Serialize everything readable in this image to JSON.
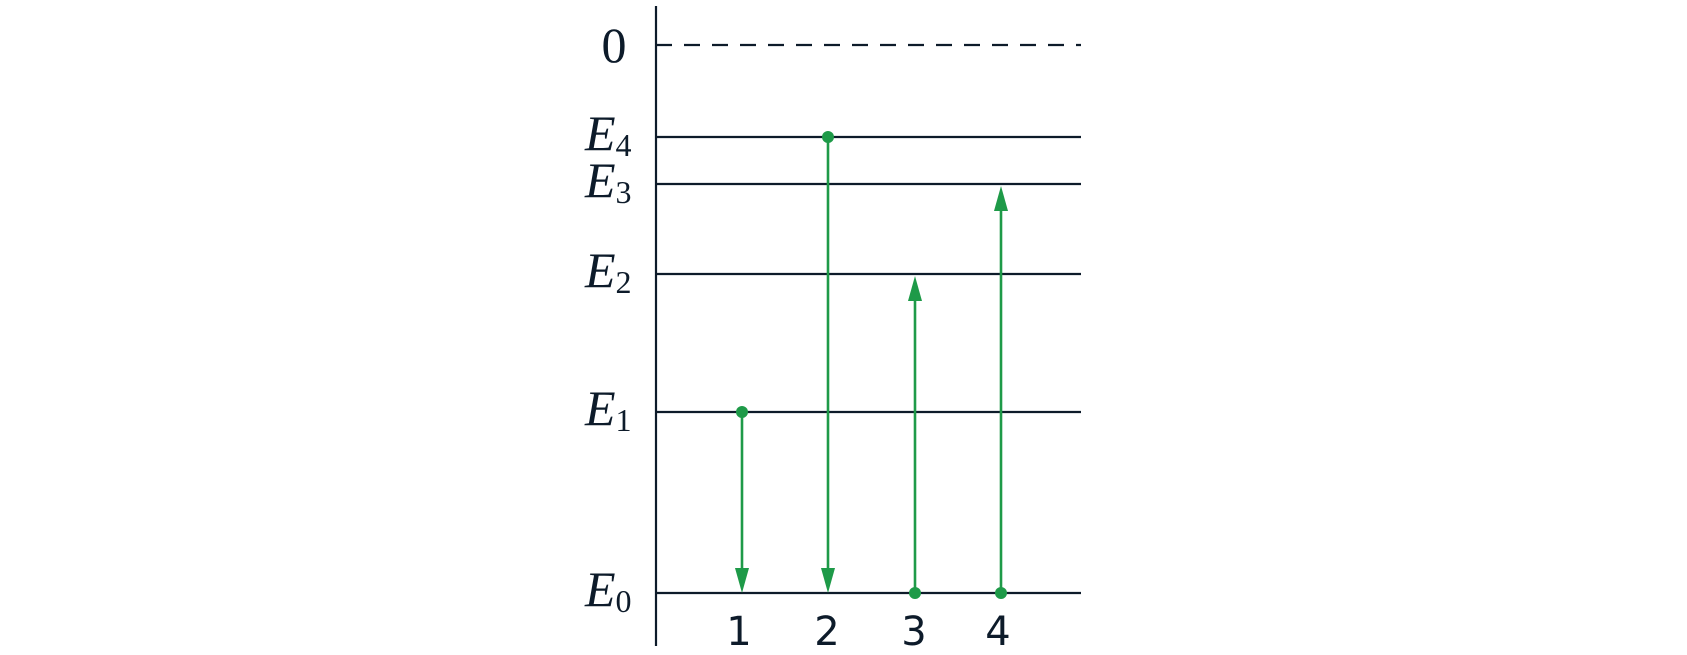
{
  "energy_axis": {
    "zero_label": "0",
    "levels": [
      {
        "symbol": "E",
        "subscript": "4"
      },
      {
        "symbol": "E",
        "subscript": "3"
      },
      {
        "symbol": "E",
        "subscript": "2"
      },
      {
        "symbol": "E",
        "subscript": "1"
      },
      {
        "symbol": "E",
        "subscript": "0"
      }
    ]
  },
  "transitions": [
    "1",
    "2",
    "3",
    "4"
  ]
}
